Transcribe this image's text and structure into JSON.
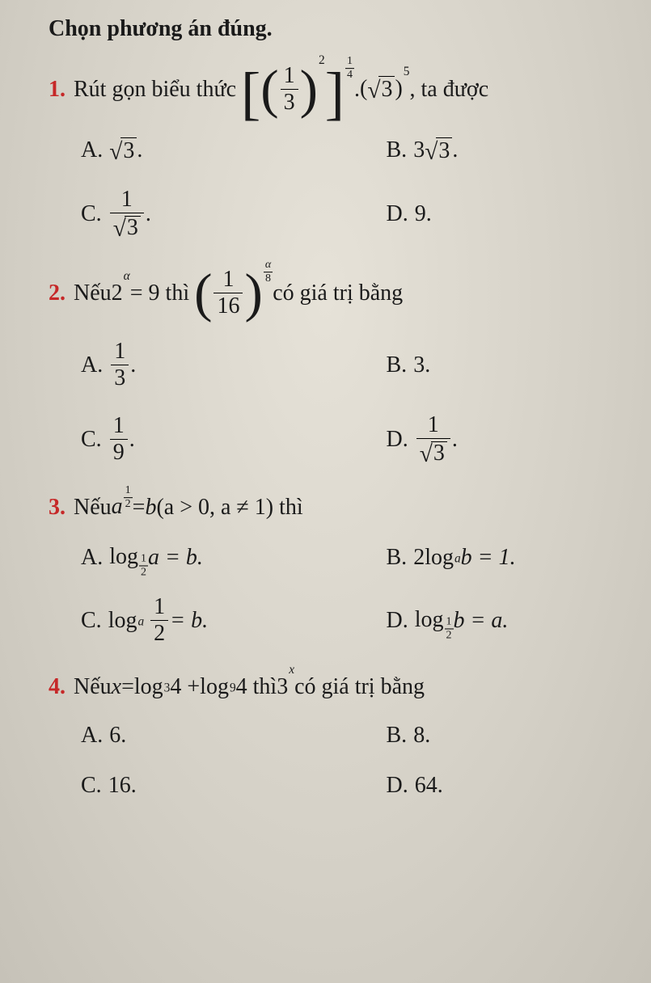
{
  "heading": "Chọn phương án đúng.",
  "q1": {
    "num": "1.",
    "lead": "Rút gọn biểu thức",
    "tail": ", ta được",
    "bracket_inner_frac": {
      "num": "1",
      "den": "3"
    },
    "inner_exp": "2",
    "outer_exp": {
      "num": "1",
      "den": "4"
    },
    "dot": ".",
    "sqrt_val": "3",
    "sqrt_exp": "5",
    "options": {
      "A": {
        "label": "A.",
        "sqrt": "3",
        "suffix": "."
      },
      "B": {
        "label": "B.",
        "coef": "3",
        "sqrt": "3",
        "suffix": "."
      },
      "C": {
        "label": "C.",
        "frac_num": "1",
        "frac_den_sqrt": "3",
        "suffix": "."
      },
      "D": {
        "label": "D.",
        "text": "9."
      }
    }
  },
  "q2": {
    "num": "2.",
    "lead1": "Nếu ",
    "base": "2",
    "alpha": "α",
    "eq": " = 9 thì",
    "paren_frac": {
      "num": "1",
      "den": "16"
    },
    "paren_exp": {
      "num": "α",
      "den": "8"
    },
    "tail": " có giá trị bằng",
    "options": {
      "A": {
        "label": "A.",
        "frac": {
          "num": "1",
          "den": "3"
        },
        "suffix": "."
      },
      "B": {
        "label": "B.",
        "text": "3."
      },
      "C": {
        "label": "C.",
        "frac": {
          "num": "1",
          "den": "9"
        },
        "suffix": "."
      },
      "D": {
        "label": "D.",
        "frac_num": "1",
        "frac_den_sqrt": "3",
        "suffix": "."
      }
    }
  },
  "q3": {
    "num": "3.",
    "lead": "Nếu ",
    "a": "a",
    "exp": {
      "num": "1",
      "den": "2"
    },
    "eq_b": " = ",
    "b": "b",
    "cond": " (a > 0, a ≠ 1) thì",
    "options": {
      "A": {
        "label": "A.",
        "log": "log",
        "sub": {
          "num": "1",
          "den": "2"
        },
        "arg": " a = b."
      },
      "B": {
        "label": "B.",
        "pre": "2 ",
        "log": "log",
        "sub_plain": "a",
        "arg": " b = 1."
      },
      "C": {
        "label": "C.",
        "log": "log",
        "sub_plain": "a",
        "frac": {
          "num": "1",
          "den": "2"
        },
        "arg": " = b."
      },
      "D": {
        "label": "D.",
        "log": "log",
        "sub": {
          "num": "1",
          "den": "2"
        },
        "arg": " b = a."
      }
    }
  },
  "q4": {
    "num": "4.",
    "text_a": "Nếu ",
    "x": "x",
    "eq": " = ",
    "log1": "log",
    "sub1": "3",
    "arg1": " 4 + ",
    "log2": "log",
    "sub2": "9",
    "arg2": " 4 thì ",
    "three": "3",
    "expx": "x",
    "tail": " có giá trị bằng",
    "options": {
      "A": {
        "label": "A.",
        "text": "6."
      },
      "B": {
        "label": "B.",
        "text": "8."
      },
      "C": {
        "label": "C.",
        "text": "16."
      },
      "D": {
        "label": "D.",
        "text": "64."
      }
    }
  }
}
